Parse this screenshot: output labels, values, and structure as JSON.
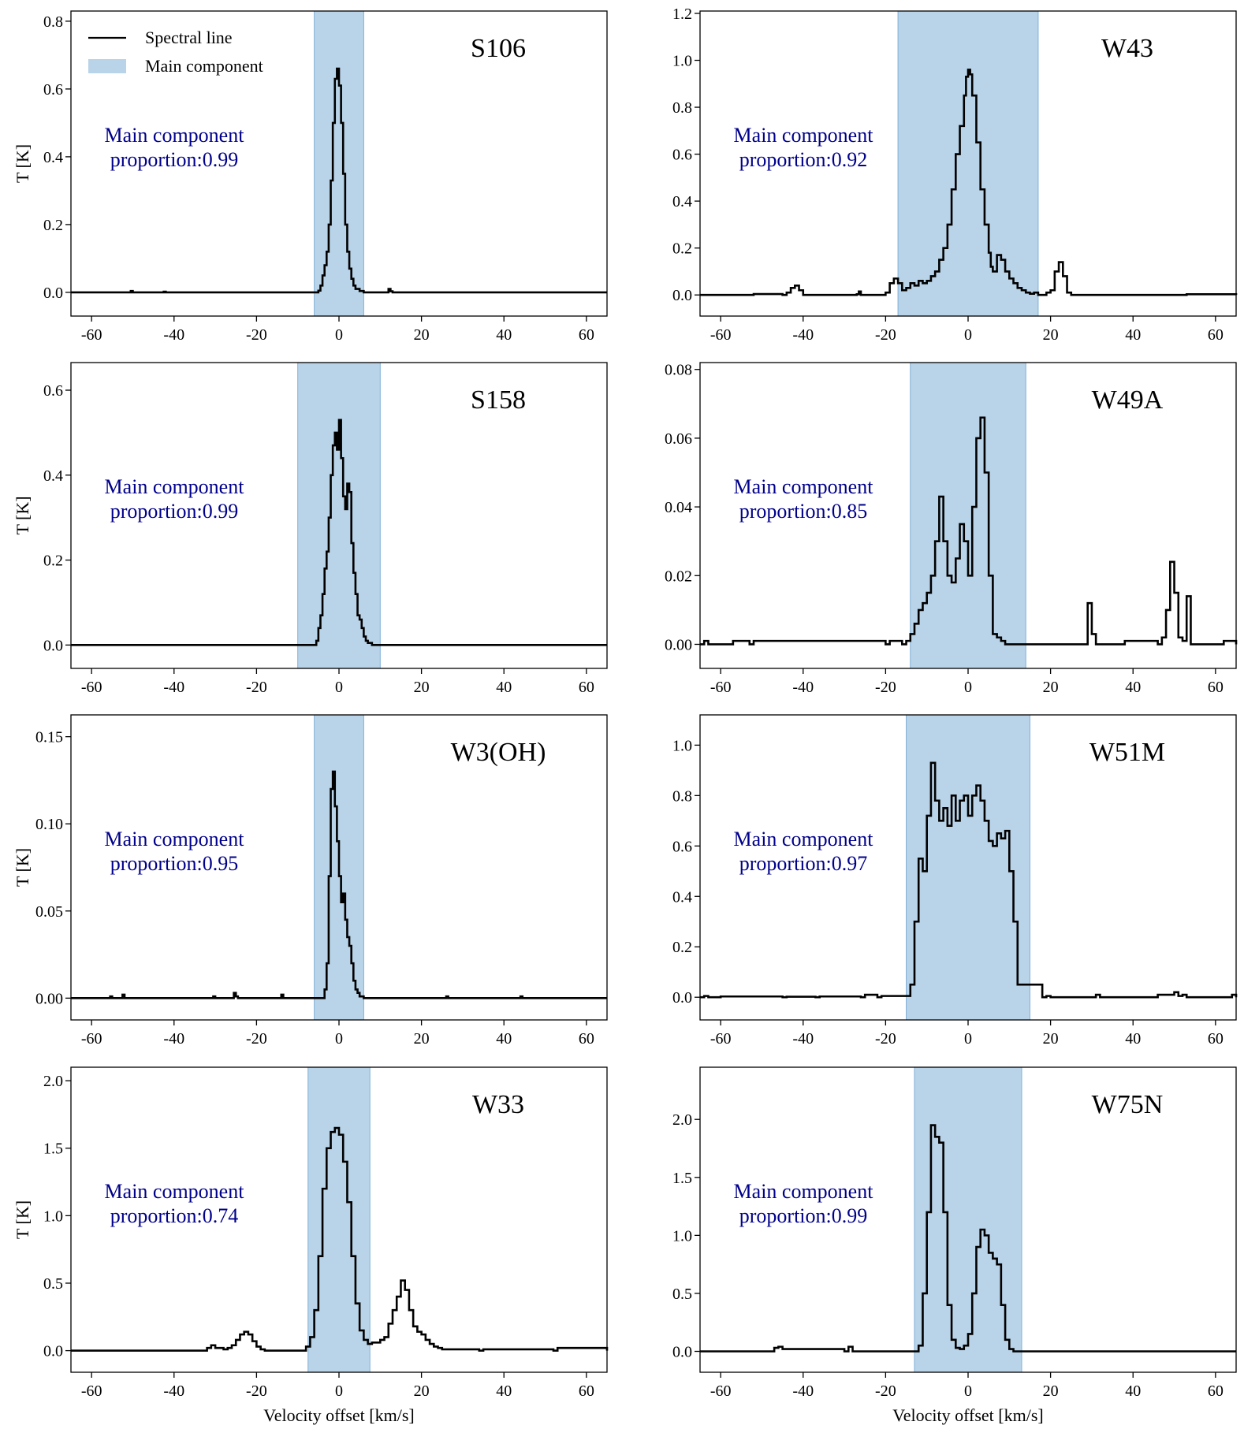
{
  "figure": {
    "shared_xlabel": "Velocity offset [km/s]",
    "ylabel": "T [K]",
    "legend": {
      "line_label": "Spectral line",
      "patch_label": "Main component"
    },
    "annotation_line1": "Main component",
    "colors": {
      "band": "#b9d4e9",
      "band_edge": "#7fb0d6",
      "annotation": "#00008b",
      "line": "#000000"
    }
  },
  "chart_data": [
    {
      "type": "line",
      "name": "S106",
      "step": true,
      "title": "S106",
      "xlabel": "",
      "ylabel": "T [K]",
      "xlim": [
        -65,
        65
      ],
      "ylim": [
        -0.07,
        0.83
      ],
      "xticks": [
        -60,
        -40,
        -20,
        0,
        20,
        40,
        60
      ],
      "xtick_labels": [
        "-60",
        "-40",
        "-20",
        "0",
        "20",
        "40",
        "60"
      ],
      "yticks": [
        0.0,
        0.2,
        0.4,
        0.6,
        0.8
      ],
      "ytick_labels": [
        "0.0",
        "0.2",
        "0.4",
        "0.6",
        "0.8"
      ],
      "band": [
        -6,
        6
      ],
      "annotation": "proportion:0.99",
      "legend": true,
      "x": [
        -65,
        -51,
        -50.5,
        -50,
        -43,
        -42.5,
        -42,
        -6,
        -5,
        -4.5,
        -4,
        -3.5,
        -3,
        -2.5,
        -2,
        -1.5,
        -1,
        -0.5,
        0,
        0.5,
        1,
        1.5,
        2,
        2.5,
        3,
        3.5,
        4,
        5,
        6,
        11.5,
        12,
        12.5,
        13,
        65
      ],
      "y": [
        0,
        0,
        0.004,
        0,
        0,
        0.002,
        0,
        0,
        0.005,
        0.02,
        0.05,
        0.08,
        0.12,
        0.2,
        0.33,
        0.5,
        0.63,
        0.66,
        0.61,
        0.5,
        0.35,
        0.2,
        0.12,
        0.07,
        0.04,
        0.02,
        0.01,
        0.004,
        0,
        0,
        0.01,
        0.003,
        0,
        0
      ]
    },
    {
      "type": "line",
      "name": "W43",
      "step": true,
      "title": "W43",
      "xlabel": "",
      "ylabel": "",
      "xlim": [
        -65,
        65
      ],
      "ylim": [
        -0.09,
        1.21
      ],
      "xticks": [
        -60,
        -40,
        -20,
        0,
        20,
        40,
        60
      ],
      "xtick_labels": [
        "-60",
        "-40",
        "-20",
        "0",
        "20",
        "40",
        "60"
      ],
      "yticks": [
        0.0,
        0.2,
        0.4,
        0.6,
        0.8,
        1.0,
        1.2
      ],
      "ytick_labels": [
        "0.0",
        "0.2",
        "0.4",
        "0.6",
        "0.8",
        "1.0",
        "1.2"
      ],
      "band": [
        -17,
        17
      ],
      "annotation": "proportion:0.92",
      "legend": false,
      "x": [
        -65,
        -53,
        -52,
        -45,
        -44,
        -43,
        -42,
        -41,
        -40,
        -30,
        -27,
        -26.5,
        -26,
        -20,
        -19,
        -18,
        -17,
        -16,
        -15,
        -14,
        -13,
        -12,
        -11,
        -10,
        -9,
        -8,
        -7,
        -6,
        -5,
        -4,
        -3,
        -2,
        -1,
        -0.5,
        0,
        0.5,
        1,
        2,
        3,
        4,
        5,
        5.5,
        6,
        7,
        8,
        9,
        10,
        11,
        12,
        13,
        14,
        15,
        16,
        17,
        18,
        19,
        20,
        21,
        22,
        23,
        24,
        25,
        52,
        53,
        65
      ],
      "y": [
        0,
        0,
        0.004,
        0,
        0.01,
        0.03,
        0.04,
        0.02,
        0,
        0,
        0.003,
        0.015,
        0,
        0.01,
        0.05,
        0.07,
        0.05,
        0.02,
        0.03,
        0.05,
        0.04,
        0.06,
        0.05,
        0.06,
        0.08,
        0.1,
        0.15,
        0.2,
        0.3,
        0.45,
        0.6,
        0.72,
        0.85,
        0.93,
        0.96,
        0.94,
        0.85,
        0.65,
        0.45,
        0.3,
        0.18,
        0.12,
        0.1,
        0.17,
        0.15,
        0.1,
        0.07,
        0.05,
        0.03,
        0.02,
        0.01,
        0.005,
        0.01,
        0,
        0,
        0.01,
        0.02,
        0.1,
        0.14,
        0.08,
        0.01,
        0,
        0,
        0.003,
        0
      ]
    },
    {
      "type": "line",
      "name": "S158",
      "step": true,
      "title": "S158",
      "xlabel": "",
      "ylabel": "T [K]",
      "xlim": [
        -65,
        65
      ],
      "ylim": [
        -0.055,
        0.665
      ],
      "xticks": [
        -60,
        -40,
        -20,
        0,
        20,
        40,
        60
      ],
      "xtick_labels": [
        "-60",
        "-40",
        "-20",
        "0",
        "20",
        "40",
        "60"
      ],
      "yticks": [
        0.0,
        0.2,
        0.4,
        0.6
      ],
      "ytick_labels": [
        "0.0",
        "0.2",
        "0.4",
        "0.6"
      ],
      "band": [
        -10,
        10
      ],
      "annotation": "proportion:0.99",
      "legend": false,
      "x": [
        -65,
        -6,
        -5.5,
        -5,
        -4.5,
        -4,
        -3.5,
        -3,
        -2.5,
        -2,
        -1.5,
        -1,
        -0.5,
        0,
        0.5,
        1,
        1.5,
        2,
        2.5,
        3,
        3.5,
        4,
        4.5,
        5,
        5.5,
        6,
        6.5,
        7,
        8,
        65
      ],
      "y": [
        0,
        0,
        0.01,
        0.04,
        0.07,
        0.12,
        0.18,
        0.22,
        0.3,
        0.4,
        0.47,
        0.5,
        0.46,
        0.53,
        0.44,
        0.35,
        0.32,
        0.38,
        0.36,
        0.24,
        0.17,
        0.12,
        0.07,
        0.06,
        0.04,
        0.02,
        0.01,
        0.005,
        0,
        0
      ]
    },
    {
      "type": "line",
      "name": "W49A",
      "step": true,
      "title": "W49A",
      "xlabel": "",
      "ylabel": "",
      "xlim": [
        -65,
        65
      ],
      "ylim": [
        -0.007,
        0.082
      ],
      "xticks": [
        -60,
        -40,
        -20,
        0,
        20,
        40,
        60
      ],
      "xtick_labels": [
        "-60",
        "-40",
        "-20",
        "0",
        "20",
        "40",
        "60"
      ],
      "yticks": [
        0.0,
        0.02,
        0.04,
        0.06,
        0.08
      ],
      "ytick_labels": [
        "0.00",
        "0.02",
        "0.04",
        "0.06",
        "0.08"
      ],
      "band": [
        -14,
        14
      ],
      "annotation": "proportion:0.85",
      "legend": false,
      "x": [
        -65,
        -64,
        -63,
        -58,
        -57,
        -53,
        -52,
        -20,
        -19,
        -16,
        -15,
        -14,
        -13,
        -12,
        -11,
        -10,
        -9,
        -8,
        -7,
        -6,
        -5,
        -4,
        -3,
        -2,
        -1,
        0,
        1,
        2,
        3,
        4,
        5,
        6,
        7,
        8,
        9,
        28,
        29,
        30,
        31,
        37,
        38,
        46,
        47,
        48,
        49,
        50,
        51,
        52,
        53,
        54,
        61,
        62,
        65
      ],
      "y": [
        0,
        0.001,
        0,
        0,
        0.001,
        0,
        0.001,
        0,
        0.001,
        0,
        0.001,
        0.003,
        0.006,
        0.01,
        0.012,
        0.015,
        0.02,
        0.03,
        0.043,
        0.03,
        0.02,
        0.018,
        0.025,
        0.035,
        0.03,
        0.02,
        0.04,
        0.06,
        0.066,
        0.05,
        0.02,
        0.003,
        0.002,
        0.001,
        0,
        0,
        0.012,
        0.003,
        0,
        0,
        0.001,
        0,
        0.002,
        0.01,
        0.024,
        0.015,
        0.002,
        0.001,
        0.014,
        0,
        0,
        0.001,
        0
      ]
    },
    {
      "type": "line",
      "name": "W3(OH)",
      "step": true,
      "title": "W3(OH)",
      "xlabel": "",
      "ylabel": "T [K]",
      "xlim": [
        -65,
        65
      ],
      "ylim": [
        -0.0125,
        0.1625
      ],
      "xticks": [
        -60,
        -40,
        -20,
        0,
        20,
        40,
        60
      ],
      "xtick_labels": [
        "-60",
        "-40",
        "-20",
        "0",
        "20",
        "40",
        "60"
      ],
      "yticks": [
        0.0,
        0.05,
        0.1,
        0.15
      ],
      "ytick_labels": [
        "0.00",
        "0.05",
        "0.10",
        "0.15"
      ],
      "band": [
        -6,
        6
      ],
      "annotation": "proportion:0.95",
      "legend": false,
      "x": [
        -65,
        -56,
        -55.5,
        -55,
        -53,
        -52.5,
        -52,
        -31,
        -30.5,
        -30,
        -26,
        -25.5,
        -25,
        -24.5,
        -14.5,
        -14,
        -13.5,
        -4,
        -3.5,
        -3,
        -2.5,
        -2,
        -1.5,
        -1,
        -0.5,
        0,
        0.5,
        1,
        1.5,
        2,
        2.5,
        3,
        3.5,
        4,
        4.5,
        5,
        6,
        25.5,
        26,
        26.5,
        43.5,
        44,
        44.5,
        65
      ],
      "y": [
        0,
        0,
        0.001,
        0,
        0,
        0.002,
        0,
        0,
        0.001,
        0,
        0,
        0.003,
        0.001,
        0,
        0,
        0.002,
        0,
        0,
        0.005,
        0.02,
        0.07,
        0.12,
        0.13,
        0.11,
        0.09,
        0.07,
        0.055,
        0.06,
        0.045,
        0.035,
        0.03,
        0.02,
        0.01,
        0.005,
        0.003,
        0.001,
        0,
        0,
        0.001,
        0,
        0,
        0.001,
        0,
        0
      ]
    },
    {
      "type": "line",
      "name": "W51M",
      "step": true,
      "title": "W51M",
      "xlabel": "",
      "ylabel": "",
      "xlim": [
        -65,
        65
      ],
      "ylim": [
        -0.09,
        1.12
      ],
      "xticks": [
        -60,
        -40,
        -20,
        0,
        20,
        40,
        60
      ],
      "xtick_labels": [
        "-60",
        "-40",
        "-20",
        "0",
        "20",
        "40",
        "60"
      ],
      "yticks": [
        0.0,
        0.2,
        0.4,
        0.6,
        0.8,
        1.0
      ],
      "ytick_labels": [
        "0.0",
        "0.2",
        "0.4",
        "0.6",
        "0.8",
        "1.0"
      ],
      "band": [
        -15,
        15
      ],
      "annotation": "proportion:0.97",
      "legend": false,
      "x": [
        -65,
        -64,
        -63,
        -61,
        -60,
        -45,
        -44,
        -37,
        -36,
        -26,
        -25,
        -22,
        -21,
        -14,
        -13,
        -12,
        -11,
        -10,
        -9,
        -8,
        -7,
        -6,
        -5,
        -4,
        -3,
        -2,
        -1,
        0,
        1,
        2,
        3,
        4,
        5,
        6,
        7,
        8,
        9,
        10,
        11,
        12,
        18,
        19,
        20,
        21,
        31,
        32,
        45,
        46,
        50,
        51,
        52,
        53,
        63,
        64,
        65
      ],
      "y": [
        0,
        0.005,
        0,
        0,
        0.003,
        0,
        0.002,
        0,
        0.003,
        0,
        0.01,
        0,
        0.005,
        0.05,
        0.3,
        0.55,
        0.5,
        0.72,
        0.93,
        0.78,
        0.7,
        0.75,
        0.68,
        0.8,
        0.7,
        0.78,
        0.8,
        0.72,
        0.8,
        0.84,
        0.78,
        0.7,
        0.62,
        0.6,
        0.65,
        0.63,
        0.66,
        0.5,
        0.3,
        0.05,
        0,
        0.005,
        0,
        0,
        0.01,
        0,
        0,
        0.01,
        0.02,
        0.005,
        0.01,
        0,
        0,
        0.01,
        0
      ]
    },
    {
      "type": "line",
      "name": "W33",
      "step": true,
      "title": "W33",
      "xlabel": "Velocity offset [km/s]",
      "ylabel": "T [K]",
      "xlim": [
        -65,
        65
      ],
      "ylim": [
        -0.16,
        2.1
      ],
      "xticks": [
        -60,
        -40,
        -20,
        0,
        20,
        40,
        60
      ],
      "xtick_labels": [
        "-60",
        "-40",
        "-20",
        "0",
        "20",
        "40",
        "60"
      ],
      "yticks": [
        0.0,
        0.5,
        1.0,
        1.5,
        2.0
      ],
      "ytick_labels": [
        "0.0",
        "0.5",
        "1.0",
        "1.5",
        "2.0"
      ],
      "band": [
        -7.5,
        7.5
      ],
      "annotation": "proportion:0.74",
      "legend": false,
      "x": [
        -65,
        -33,
        -32,
        -31,
        -30,
        -28,
        -27,
        -26,
        -25,
        -24,
        -23,
        -22,
        -21,
        -20,
        -19,
        -18,
        -10,
        -8,
        -7,
        -6,
        -5,
        -4,
        -3,
        -2,
        -1,
        0,
        1,
        2,
        3,
        4,
        5,
        6,
        7,
        8,
        9,
        10,
        11,
        12,
        13,
        14,
        15,
        16,
        17,
        18,
        19,
        20,
        21,
        22,
        23,
        24,
        25,
        34,
        35,
        52,
        53,
        65
      ],
      "y": [
        0,
        0,
        0.02,
        0.04,
        0.02,
        0.01,
        0.02,
        0.04,
        0.08,
        0.12,
        0.14,
        0.12,
        0.07,
        0.03,
        0.01,
        0,
        0,
        0.03,
        0.1,
        0.3,
        0.7,
        1.2,
        1.5,
        1.62,
        1.65,
        1.6,
        1.4,
        1.1,
        0.7,
        0.35,
        0.15,
        0.08,
        0.05,
        0.06,
        0.06,
        0.08,
        0.1,
        0.2,
        0.3,
        0.4,
        0.52,
        0.45,
        0.3,
        0.18,
        0.14,
        0.12,
        0.08,
        0.05,
        0.03,
        0.02,
        0.01,
        0,
        0.01,
        0,
        0.02,
        0
      ]
    },
    {
      "type": "line",
      "name": "W75N",
      "step": true,
      "title": "W75N",
      "xlabel": "Velocity offset [km/s]",
      "ylabel": "",
      "xlim": [
        -65,
        65
      ],
      "ylim": [
        -0.18,
        2.45
      ],
      "xticks": [
        -60,
        -40,
        -20,
        0,
        20,
        40,
        60
      ],
      "xtick_labels": [
        "-60",
        "-40",
        "-20",
        "0",
        "20",
        "40",
        "60"
      ],
      "yticks": [
        0.0,
        0.5,
        1.0,
        1.5,
        2.0
      ],
      "ytick_labels": [
        "0.0",
        "0.5",
        "1.0",
        "1.5",
        "2.0"
      ],
      "band": [
        -13,
        13
      ],
      "annotation": "proportion:0.99",
      "legend": false,
      "x": [
        -65,
        -48,
        -47,
        -46,
        -45,
        -30,
        -29,
        -28,
        -13,
        -12,
        -11,
        -10,
        -9,
        -8,
        -7,
        -6,
        -5,
        -4,
        -3,
        -2,
        -1,
        0,
        1,
        2,
        3,
        4,
        5,
        6,
        7,
        8,
        9,
        10,
        11,
        65
      ],
      "y": [
        0,
        0,
        0.03,
        0.04,
        0.02,
        0,
        0.04,
        0,
        0,
        0.05,
        0.5,
        1.2,
        1.95,
        1.85,
        1.8,
        1.2,
        0.4,
        0.1,
        0.03,
        0.02,
        0.05,
        0.15,
        0.5,
        0.9,
        1.05,
        1.0,
        0.85,
        0.8,
        0.75,
        0.4,
        0.1,
        0.02,
        0,
        0
      ]
    }
  ]
}
